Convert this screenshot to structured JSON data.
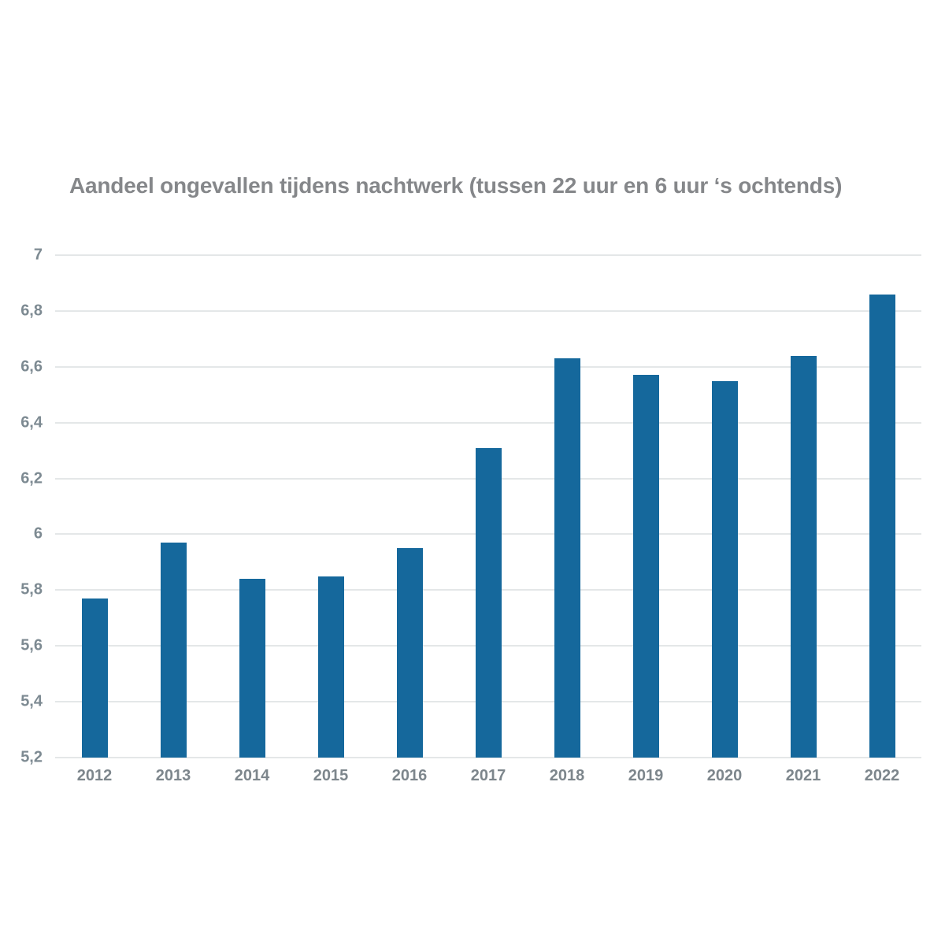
{
  "page": {
    "background": "#ffffff"
  },
  "chart_data": {
    "type": "bar",
    "title": "Aandeel ongevallen tijdens nachtwerk (tussen 22 uur en 6 uur ‘s ochtends)",
    "categories": [
      "2012",
      "2013",
      "2014",
      "2015",
      "2016",
      "2017",
      "2018",
      "2019",
      "2020",
      "2021",
      "2022"
    ],
    "values": [
      5.77,
      5.97,
      5.84,
      5.85,
      5.95,
      6.31,
      6.63,
      6.57,
      6.55,
      6.64,
      6.86
    ],
    "xlabel": "",
    "ylabel": "",
    "ylim": [
      5.2,
      7.0
    ],
    "yticks": [
      7,
      6.8,
      6.6,
      6.4,
      6.2,
      6,
      5.8,
      5.6,
      5.4,
      5.2
    ],
    "ytick_labels": [
      "7",
      "6,8",
      "6,6",
      "6,4",
      "6,2",
      "6",
      "5,8",
      "5,6",
      "5,4",
      "5,2"
    ],
    "grid": true,
    "legend": false,
    "colors": {
      "bar": "#15689c",
      "gridline": "#e4e7e8",
      "title_text": "#85878a",
      "tick_text": "#7d8a92"
    }
  }
}
